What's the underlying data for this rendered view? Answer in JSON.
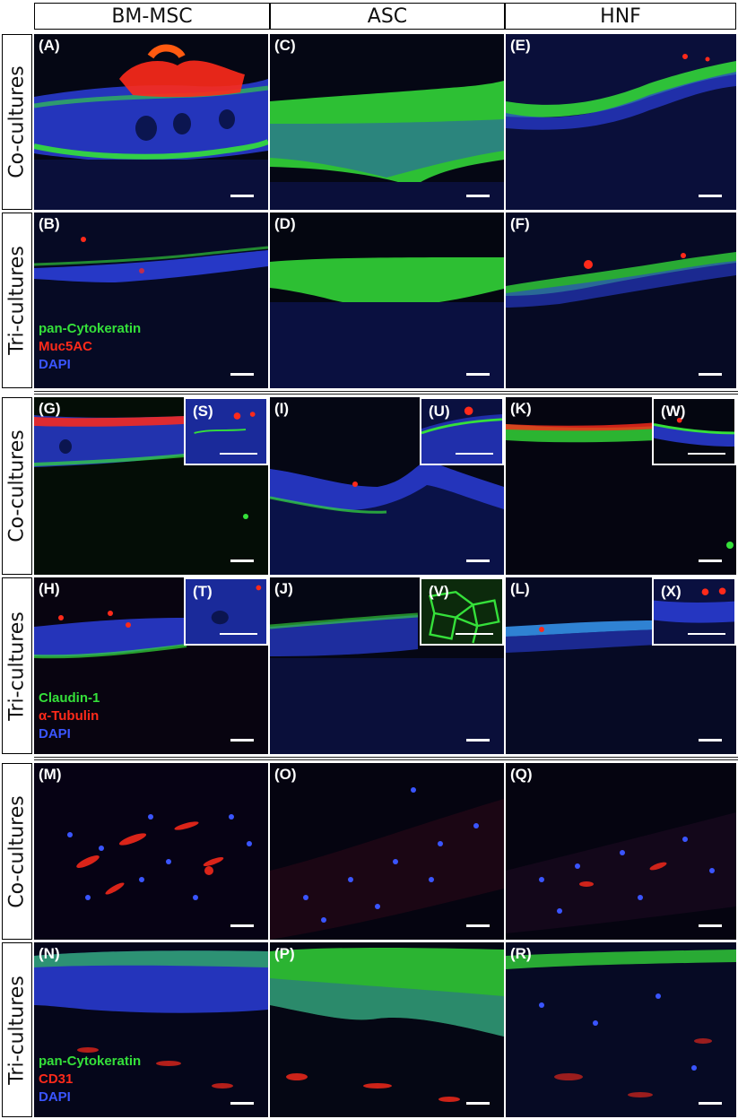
{
  "columns": [
    "BM-MSC",
    "ASC",
    "HNF"
  ],
  "row_labels": {
    "co": "Co-cultures",
    "tri": "Tri-cultures"
  },
  "panels": {
    "A": "(A)",
    "B": "(B)",
    "C": "(C)",
    "D": "(D)",
    "E": "(E)",
    "F": "(F)",
    "G": "(G)",
    "H": "(H)",
    "I": "(I)",
    "J": "(J)",
    "K": "(K)",
    "L": "(L)",
    "M": "(M)",
    "N": "(N)",
    "O": "(O)",
    "P": "(P)",
    "Q": "(Q)",
    "R": "(R)",
    "S": "(S)",
    "T": "(T)",
    "U": "(U)",
    "V": "(V)",
    "W": "(W)",
    "X": "(X)"
  },
  "legends": {
    "group1": {
      "green": "pan-Cytokeratin",
      "red": "Muc5AC",
      "blue": "DAPI"
    },
    "group2": {
      "green": "Claudin-1",
      "red": "α-Tubulin",
      "blue": "DAPI"
    },
    "group3": {
      "green": "pan-Cytokeratin",
      "red": "CD31",
      "blue": "DAPI"
    }
  },
  "colors": {
    "green_stain": "#35e03a",
    "red_stain": "#ff2a1a",
    "blue_stain": "#3a55ff",
    "background": "#050714"
  }
}
